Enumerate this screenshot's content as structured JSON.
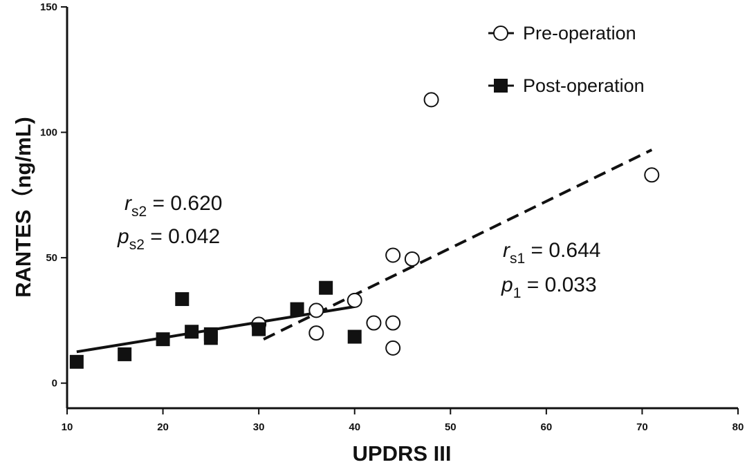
{
  "chart_data": {
    "type": "scatter",
    "xlabel": "UPDRS III",
    "ylabel": "RANTES（ng/mL)",
    "xlim": [
      10,
      80
    ],
    "ylim": [
      -10,
      150
    ],
    "x_ticks": [
      10,
      20,
      30,
      40,
      50,
      60,
      70,
      80
    ],
    "x_tick_labels": [
      "10",
      "20",
      "30",
      "40",
      "50",
      "60",
      "70",
      "80"
    ],
    "y_ticks": [
      0,
      50,
      100,
      150
    ],
    "y_tick_labels": [
      "0",
      "50",
      "100",
      "150"
    ],
    "grid": false,
    "legend_position": "top-right",
    "series": [
      {
        "name": "Pre-operation",
        "marker": "open-circle",
        "line_style": "dashed",
        "points": [
          {
            "x": 30,
            "y": 23.5
          },
          {
            "x": 36,
            "y": 29
          },
          {
            "x": 36,
            "y": 20
          },
          {
            "x": 40,
            "y": 33
          },
          {
            "x": 42,
            "y": 24
          },
          {
            "x": 44,
            "y": 51
          },
          {
            "x": 44,
            "y": 24
          },
          {
            "x": 44,
            "y": 14
          },
          {
            "x": 46,
            "y": 49.5
          },
          {
            "x": 48,
            "y": 113
          },
          {
            "x": 71,
            "y": 83
          }
        ],
        "fit_line": {
          "x": [
            30.5,
            71
          ],
          "y": [
            17.5,
            93
          ]
        }
      },
      {
        "name": "Post-operation",
        "marker": "filled-square",
        "line_style": "solid",
        "points": [
          {
            "x": 11,
            "y": 8.5
          },
          {
            "x": 16,
            "y": 11.5
          },
          {
            "x": 20,
            "y": 17.5
          },
          {
            "x": 22,
            "y": 33.5
          },
          {
            "x": 23,
            "y": 20.5
          },
          {
            "x": 25,
            "y": 19.5
          },
          {
            "x": 25,
            "y": 18
          },
          {
            "x": 30,
            "y": 21.5
          },
          {
            "x": 34,
            "y": 29.5
          },
          {
            "x": 37,
            "y": 38
          },
          {
            "x": 40,
            "y": 18.5
          }
        ],
        "fit_line": {
          "x": [
            11,
            40
          ],
          "y": [
            12.5,
            30.5
          ]
        }
      }
    ],
    "annotations": [
      {
        "id": "rs2",
        "symbol": "r",
        "sub": "s2",
        "text": " = 0.620"
      },
      {
        "id": "ps2",
        "symbol": "p",
        "sub": "s2",
        "text": " = 0.042"
      },
      {
        "id": "rs1",
        "symbol": "r",
        "sub": "s1",
        "text": " = 0.644"
      },
      {
        "id": "p1",
        "symbol": "p",
        "sub": "1",
        "text": " = 0.033"
      }
    ],
    "colors": {
      "ink": "#111111",
      "background": "#ffffff"
    }
  }
}
